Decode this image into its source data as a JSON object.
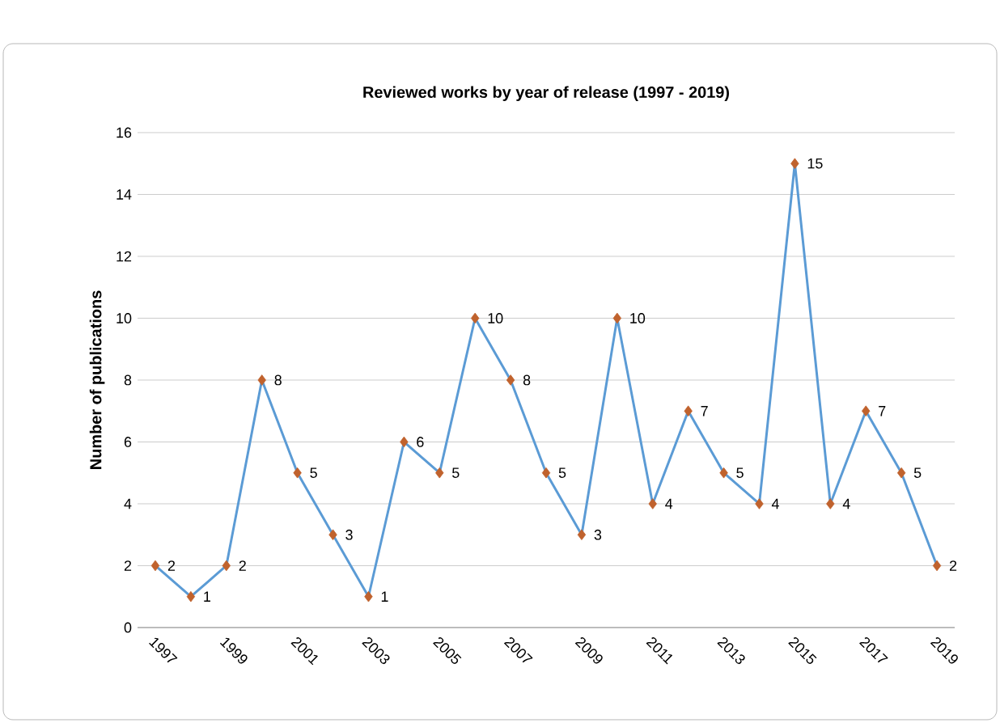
{
  "chart_data": {
    "type": "line",
    "title": "Reviewed works by year of release (1997 - 2019)",
    "ylabel": "Number of publications",
    "categories": [
      "1997",
      null,
      "1999",
      null,
      "2001",
      null,
      "2003",
      null,
      "2005",
      null,
      "2007",
      null,
      "2009",
      null,
      "2011",
      null,
      "2013",
      null,
      "2015",
      null,
      "2017",
      null,
      "2019"
    ],
    "series": [
      {
        "color": "#5b9bd5",
        "colors": [
          "#c0622d",
          "#c0622d",
          "#c0622d",
          "#c0622d",
          "#c0622d",
          "#c0622d",
          "#c0622d",
          "#c0622d",
          "#c0622d",
          "#c0622d",
          "#c0622d",
          "#c0622d",
          "#c0622d",
          "#c0622d",
          "#c0622d",
          "#c0622d",
          "#c0622d",
          "#c0622d",
          "#c0622d",
          "#c0622d",
          "#c0622d",
          "#c0622d",
          "#c0622d"
        ],
        "values": [
          2,
          1,
          2,
          8,
          5,
          3,
          1,
          6,
          5,
          10,
          8,
          5,
          3,
          10,
          4,
          7,
          5,
          4,
          15,
          4,
          7,
          5,
          2
        ]
      }
    ],
    "ylim": [
      0,
      16
    ],
    "yticks": [
      0,
      2,
      4,
      6,
      8,
      10,
      12,
      14,
      16
    ],
    "grid": "y",
    "marker": "diamond",
    "data_labels": true
  }
}
